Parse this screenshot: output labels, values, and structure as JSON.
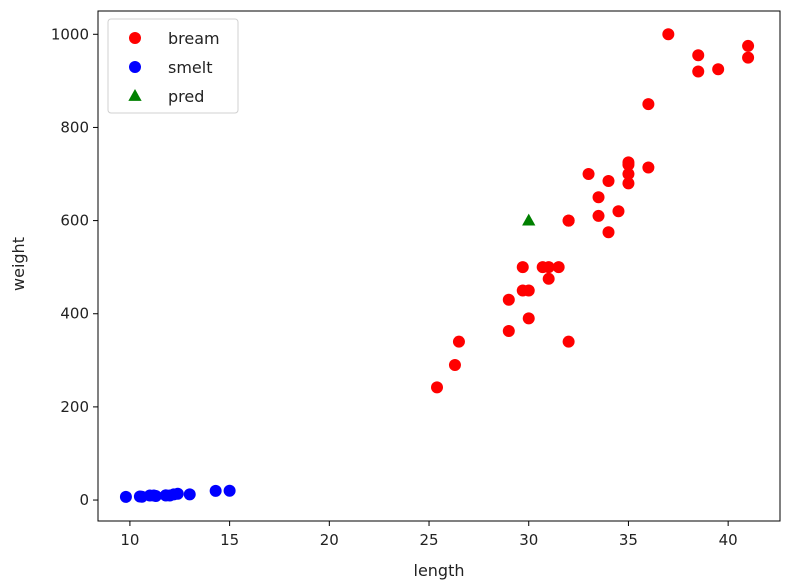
{
  "chart_data": {
    "type": "scatter",
    "xlabel": "length",
    "ylabel": "weight",
    "xlim": [
      8.4,
      42.6
    ],
    "ylim": [
      -45,
      1050
    ],
    "xticks": [
      10,
      15,
      20,
      25,
      30,
      35,
      40
    ],
    "yticks": [
      0,
      200,
      400,
      600,
      800,
      1000
    ],
    "grid": false,
    "legend_position": "top-left",
    "series": [
      {
        "name": "bream",
        "color": "#ff0000",
        "marker": "circle",
        "points": [
          [
            25.4,
            242
          ],
          [
            26.3,
            290
          ],
          [
            26.5,
            340
          ],
          [
            29.0,
            363
          ],
          [
            29.0,
            430
          ],
          [
            29.7,
            450
          ],
          [
            29.7,
            500
          ],
          [
            30.0,
            390
          ],
          [
            30.0,
            450
          ],
          [
            30.7,
            500
          ],
          [
            31.0,
            475
          ],
          [
            31.0,
            500
          ],
          [
            31.5,
            500
          ],
          [
            32.0,
            340
          ],
          [
            32.0,
            600
          ],
          [
            32.0,
            600
          ],
          [
            33.0,
            700
          ],
          [
            33.5,
            610
          ],
          [
            33.5,
            650
          ],
          [
            34.0,
            575
          ],
          [
            34.0,
            685
          ],
          [
            34.5,
            620
          ],
          [
            35.0,
            680
          ],
          [
            35.0,
            700
          ],
          [
            35.0,
            725
          ],
          [
            35.0,
            720
          ],
          [
            36.0,
            714
          ],
          [
            36.0,
            850
          ],
          [
            37.0,
            1000
          ],
          [
            38.5,
            920
          ],
          [
            38.5,
            955
          ],
          [
            39.5,
            925
          ],
          [
            41.0,
            975
          ],
          [
            41.0,
            950
          ]
        ]
      },
      {
        "name": "smelt",
        "color": "#0000ff",
        "marker": "circle",
        "points": [
          [
            9.8,
            6.7
          ],
          [
            10.5,
            7.5
          ],
          [
            10.6,
            7.0
          ],
          [
            11.0,
            9.7
          ],
          [
            11.2,
            9.8
          ],
          [
            11.3,
            8.7
          ],
          [
            11.8,
            10.0
          ],
          [
            11.8,
            9.9
          ],
          [
            12.0,
            9.8
          ],
          [
            12.2,
            12.2
          ],
          [
            12.4,
            13.4
          ],
          [
            13.0,
            12.2
          ],
          [
            14.3,
            19.7
          ],
          [
            15.0,
            19.9
          ]
        ]
      },
      {
        "name": "pred",
        "color": "#008000",
        "marker": "triangle",
        "points": [
          [
            30,
            600
          ]
        ]
      }
    ]
  }
}
